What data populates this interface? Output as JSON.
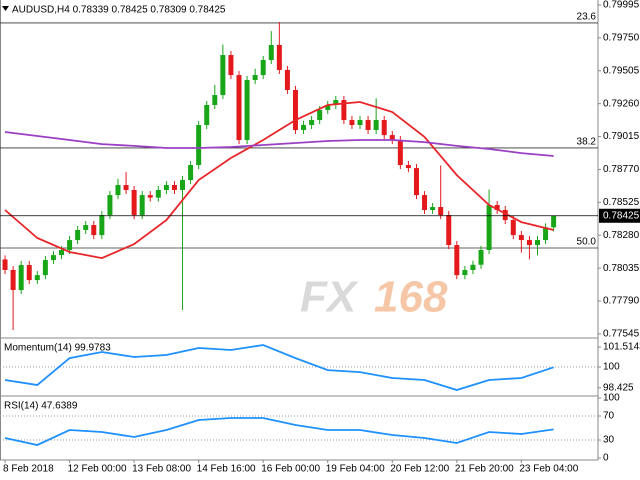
{
  "title": "AUDUSD,H4  0.78339 0.78425 0.78309 0.78425",
  "watermark": [
    "FX",
    "168"
  ],
  "chart_data": [
    {
      "type": "candlestick",
      "colors": {
        "up": "#18a518",
        "down": "#e3191c"
      },
      "xlim": [
        -0.625,
        73.5
      ],
      "xticks": [
        {
          "value": 0,
          "label": "8 Feb 2018"
        },
        {
          "value": 8,
          "label": "12 Feb 00:00"
        },
        {
          "value": 16,
          "label": "13 Feb 08:00"
        },
        {
          "value": 24,
          "label": "14 Feb 16:00"
        },
        {
          "value": 32,
          "label": "16 Feb 00:00"
        },
        {
          "value": 40,
          "label": "19 Feb 04:00"
        },
        {
          "value": 48,
          "label": "20 Feb 12:00"
        },
        {
          "value": 56,
          "label": "21 Feb 20:00"
        },
        {
          "value": 64,
          "label": "23 Feb 04:00"
        }
      ],
      "ylim": [
        0.77522,
        0.80032
      ],
      "yticks": [
        0.79995,
        {
          "value": 0.7975,
          "label": "0.79750"
        },
        0.79505,
        {
          "value": 0.7926,
          "label": "0.79260"
        },
        0.79015,
        {
          "value": 0.7877,
          "label": "0.78770"
        },
        0.78525,
        {
          "value": 0.7828,
          "label": "0.78280"
        },
        0.78035,
        {
          "value": 0.7779,
          "label": "0.77790"
        },
        0.77545
      ],
      "current_price": 0.78425,
      "levels": [
        {
          "label": "23.6",
          "value": 0.79861
        },
        {
          "label": "38.2",
          "value": 0.7893
        },
        {
          "label": "50.0",
          "value": 0.78185
        }
      ],
      "ohlc": [
        [
          0.781,
          0.7813,
          0.77991,
          0.78021
        ],
        [
          0.78021,
          0.78051,
          0.77574,
          0.77872
        ],
        [
          0.77872,
          0.78088,
          0.77842,
          0.78058
        ],
        [
          0.78058,
          0.78088,
          0.77916,
          0.77946
        ],
        [
          0.77946,
          0.78013,
          0.77916,
          0.77983
        ],
        [
          0.77983,
          0.78125,
          0.77953,
          0.78095
        ],
        [
          0.78095,
          0.78162,
          0.78065,
          0.78132
        ],
        [
          0.78132,
          0.782,
          0.78102,
          0.7817
        ],
        [
          0.7817,
          0.78274,
          0.7814,
          0.78244
        ],
        [
          0.78244,
          0.78349,
          0.78214,
          0.78319
        ],
        [
          0.78319,
          0.78386,
          0.78289,
          0.78356
        ],
        [
          0.78356,
          0.78386,
          0.78251,
          0.78281
        ],
        [
          0.78281,
          0.7846,
          0.78251,
          0.7843
        ],
        [
          0.7843,
          0.78609,
          0.784,
          0.78579
        ],
        [
          0.78579,
          0.787,
          0.78549,
          0.78654
        ],
        [
          0.78654,
          0.7875,
          0.78587,
          0.78617
        ],
        [
          0.78617,
          0.78647,
          0.784,
          0.7843
        ],
        [
          0.7843,
          0.78609,
          0.784,
          0.78579
        ],
        [
          0.78579,
          0.78609,
          0.7853,
          0.7856
        ],
        [
          0.7856,
          0.78647,
          0.7853,
          0.78617
        ],
        [
          0.78617,
          0.78684,
          0.78587,
          0.78654
        ],
        [
          0.78654,
          0.78684,
          0.78587,
          0.78617
        ],
        [
          0.78617,
          0.78721,
          0.77723,
          0.78691
        ],
        [
          0.78691,
          0.78833,
          0.78661,
          0.78803
        ],
        [
          0.78803,
          0.79131,
          0.78773,
          0.79101
        ],
        [
          0.79101,
          0.7928,
          0.79071,
          0.7925
        ],
        [
          0.7925,
          0.794,
          0.7922,
          0.79324
        ],
        [
          0.79324,
          0.797,
          0.79294,
          0.79622
        ],
        [
          0.79622,
          0.79652,
          0.79443,
          0.79473
        ],
        [
          0.79473,
          0.79503,
          0.78959,
          0.78989
        ],
        [
          0.78989,
          0.79466,
          0.78959,
          0.79436
        ],
        [
          0.79436,
          0.7952,
          0.79406,
          0.79473
        ],
        [
          0.79473,
          0.79615,
          0.79443,
          0.79585
        ],
        [
          0.79585,
          0.798,
          0.79555,
          0.79697
        ],
        [
          0.79697,
          0.79868,
          0.79481,
          0.79511
        ],
        [
          0.79511,
          0.79541,
          0.79332,
          0.79362
        ],
        [
          0.79362,
          0.79392,
          0.79034,
          0.79064
        ],
        [
          0.79064,
          0.79131,
          0.79034,
          0.79101
        ],
        [
          0.79101,
          0.79168,
          0.79071,
          0.79138
        ],
        [
          0.79138,
          0.79243,
          0.79108,
          0.79213
        ],
        [
          0.79213,
          0.7928,
          0.79183,
          0.7925
        ],
        [
          0.7925,
          0.79317,
          0.7922,
          0.79287
        ],
        [
          0.79287,
          0.79317,
          0.79108,
          0.79138
        ],
        [
          0.79138,
          0.79168,
          0.79071,
          0.79101
        ],
        [
          0.79101,
          0.79168,
          0.79071,
          0.79138
        ],
        [
          0.79138,
          0.79168,
          0.79034,
          0.79064
        ],
        [
          0.79064,
          0.793,
          0.79034,
          0.79138
        ],
        [
          0.79138,
          0.79168,
          0.78996,
          0.79026
        ],
        [
          0.79026,
          0.79056,
          0.78959,
          0.78989
        ],
        [
          0.78989,
          0.79019,
          0.78773,
          0.78803
        ],
        [
          0.78803,
          0.78833,
          0.7875,
          0.7878
        ],
        [
          0.7878,
          0.7881,
          0.78549,
          0.78579
        ],
        [
          0.78579,
          0.78609,
          0.78438,
          0.78468
        ],
        [
          0.78468,
          0.7852,
          0.78438,
          0.7849
        ],
        [
          0.7849,
          0.788,
          0.784,
          0.7843
        ],
        [
          0.7843,
          0.7846,
          0.78177,
          0.78207
        ],
        [
          0.78207,
          0.78237,
          0.77953,
          0.77983
        ],
        [
          0.77983,
          0.78051,
          0.77953,
          0.78021
        ],
        [
          0.78021,
          0.7809,
          0.77991,
          0.7806
        ],
        [
          0.7806,
          0.782,
          0.7803,
          0.7817
        ],
        [
          0.7817,
          0.7862,
          0.7814,
          0.78505
        ],
        [
          0.78505,
          0.78535,
          0.78438,
          0.78468
        ],
        [
          0.78468,
          0.78498,
          0.78363,
          0.78393
        ],
        [
          0.78393,
          0.78423,
          0.78251,
          0.78281
        ],
        [
          0.78281,
          0.78311,
          0.7815,
          0.78244
        ],
        [
          0.78244,
          0.78274,
          0.781,
          0.78207
        ],
        [
          0.78207,
          0.78274,
          0.7813,
          0.78244
        ],
        [
          0.78244,
          0.78369,
          0.78214,
          0.78339
        ],
        [
          0.78339,
          0.78425,
          0.78309,
          0.78425
        ]
      ],
      "series": [
        {
          "color": "#e8262a",
          "x": [
            0,
            4,
            8,
            12,
            16,
            20,
            24,
            28,
            32,
            36,
            40,
            44,
            48,
            52,
            56,
            60,
            64,
            68
          ],
          "values": [
            0.78468,
            0.78259,
            0.78155,
            0.7811,
            0.78214,
            0.78393,
            0.78691,
            0.78855,
            0.78989,
            0.79138,
            0.7925,
            0.79272,
            0.79198,
            0.79012,
            0.78728,
            0.78505,
            0.78378,
            0.78319
          ]
        },
        {
          "color": "#9b3fc4",
          "x": [
            0,
            4,
            8,
            12,
            16,
            20,
            24,
            28,
            32,
            36,
            40,
            44,
            48,
            52,
            56,
            60,
            64,
            68
          ],
          "values": [
            0.79049,
            0.79019,
            0.78989,
            0.78959,
            0.78945,
            0.7893,
            0.7893,
            0.78937,
            0.78952,
            0.78967,
            0.78982,
            0.78989,
            0.78989,
            0.78974,
            0.78945,
            0.78922,
            0.78892,
            0.7887
          ]
        }
      ]
    },
    {
      "type": "line",
      "title": "Momentum(14) 99.9783",
      "color": "#1e90ff",
      "ylim": [
        97.88,
        102.05
      ],
      "yticks": [
        101.5143,
        100,
        98.425
      ],
      "levels": [
        100
      ],
      "x": [
        0,
        4,
        8,
        12,
        16,
        20,
        24,
        28,
        32,
        36,
        40,
        44,
        48,
        52,
        56,
        60,
        64,
        68
      ],
      "values": [
        99.02,
        98.64,
        100.68,
        101.14,
        100.76,
        100.91,
        101.44,
        101.29,
        101.67,
        100.68,
        99.77,
        99.62,
        99.17,
        99.02,
        98.26,
        99.02,
        99.17,
        99.9783
      ]
    },
    {
      "type": "line",
      "title": "RSI(14) 47.6389",
      "color": "#1e90ff",
      "ylim": [
        0,
        100
      ],
      "yticks": [
        100,
        70,
        30,
        0
      ],
      "levels": [
        70,
        30
      ],
      "x": [
        0,
        4,
        8,
        12,
        16,
        20,
        24,
        28,
        32,
        36,
        40,
        44,
        48,
        52,
        56,
        60,
        64,
        68
      ],
      "values": [
        33.3,
        21.7,
        46.7,
        43.3,
        35,
        46.7,
        63.3,
        66.7,
        66.7,
        55,
        46.7,
        46.7,
        38.3,
        33.3,
        25,
        43.3,
        40,
        47.6389
      ]
    }
  ]
}
